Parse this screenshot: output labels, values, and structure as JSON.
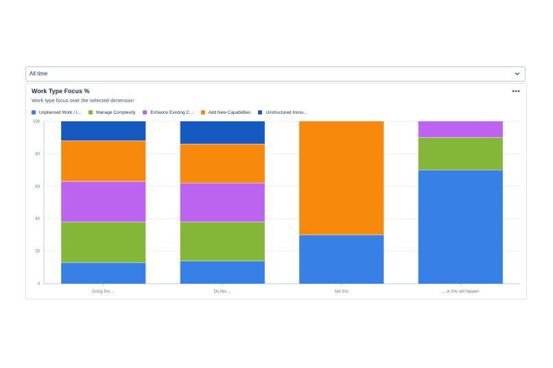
{
  "filter": {
    "selected": "All time",
    "icon": "chevron-down-icon"
  },
  "card": {
    "title": "Work Type Focus %",
    "subtitle": "Work type focus over the selected dimension",
    "more_icon": "more-icon"
  },
  "legend": [
    {
      "label": "Unplanned Work / I...",
      "color": "#3781e6"
    },
    {
      "label": "Manage Complexity",
      "color": "#84b638"
    },
    {
      "label": "Enhance Existing C...",
      "color": "#bc64f0"
    },
    {
      "label": "Add New Capabilities",
      "color": "#f78a0c"
    },
    {
      "label": "Unstructured Innov...",
      "color": "#1659c1"
    }
  ],
  "chart_data": {
    "type": "bar",
    "stacked": true,
    "title": "Work Type Focus %",
    "subtitle": "Work type focus over the selected dimension",
    "xlabel": "",
    "ylabel": "",
    "ylim": [
      0,
      100
    ],
    "yticks": [
      0,
      20,
      40,
      60,
      80,
      100
    ],
    "grid": true,
    "legend_position": "top-left",
    "categories": [
      "Doing this ...",
      "Do this ...",
      "Not this",
      "... or this will happen"
    ],
    "series": [
      {
        "name": "Unplanned Work / I...",
        "color": "#3781e6",
        "values": [
          13,
          14,
          30,
          70
        ]
      },
      {
        "name": "Manage Complexity",
        "color": "#84b638",
        "values": [
          25,
          24,
          0,
          20
        ]
      },
      {
        "name": "Enhance Existing C...",
        "color": "#bc64f0",
        "values": [
          25,
          24,
          0,
          10
        ]
      },
      {
        "name": "Add New Capabilities",
        "color": "#f78a0c",
        "values": [
          25,
          24,
          70,
          0
        ]
      },
      {
        "name": "Unstructured Innov...",
        "color": "#1659c1",
        "values": [
          12,
          14,
          0,
          0
        ]
      }
    ]
  }
}
